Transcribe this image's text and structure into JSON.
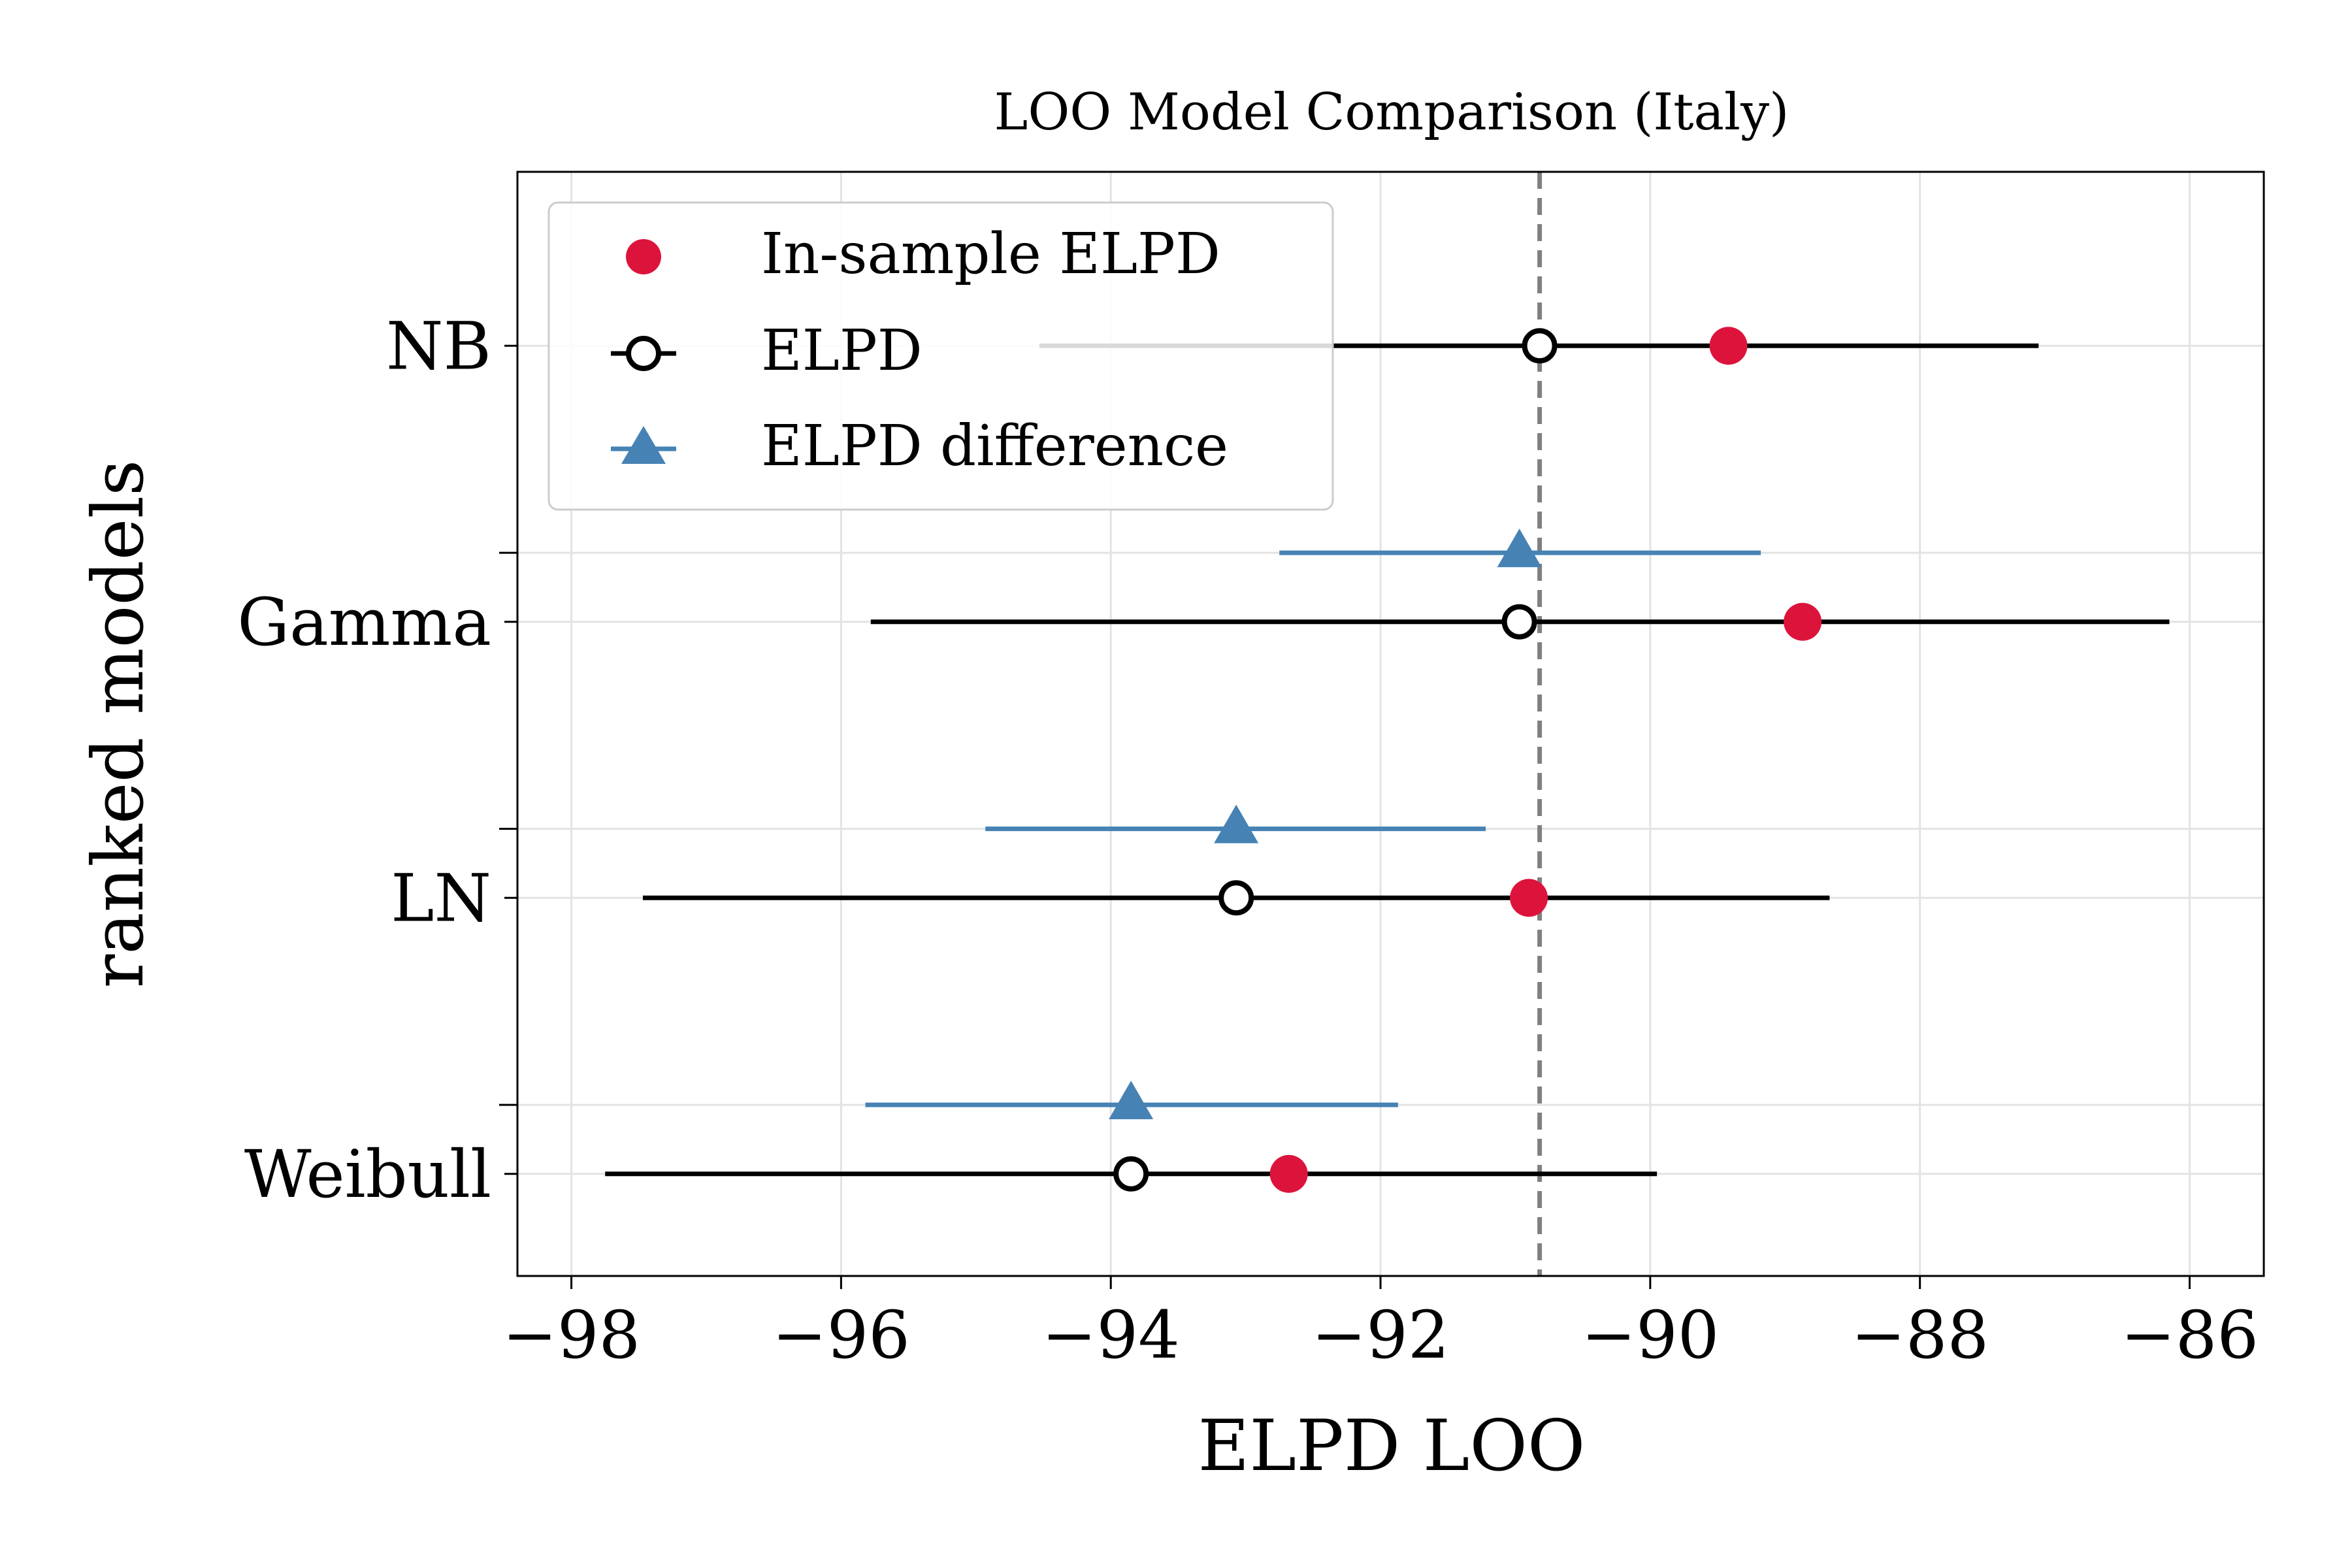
{
  "chart_data": {
    "type": "scatter",
    "title": "LOO Model Comparison (Italy)",
    "xlabel": "ELPD LOO",
    "ylabel": "ranked models",
    "xlim": [
      -98.4,
      -85.45
    ],
    "x_ticks": [
      -98,
      -96,
      -94,
      -92,
      -90,
      -88,
      -86
    ],
    "x_tick_labels": [
      "−98",
      "−96",
      "−94",
      "−92",
      "−90",
      "−88",
      "−86"
    ],
    "models": [
      "NB",
      "Gamma",
      "LN",
      "Weibull"
    ],
    "grid": true,
    "legend_position": "upper-left",
    "reference_line": -90.82,
    "series": [
      {
        "name": "In-sample ELPD",
        "marker": "filled-circle",
        "color": "#dc143c",
        "points": [
          {
            "model": "NB",
            "x": -89.42
          },
          {
            "model": "Gamma",
            "x": -88.87
          },
          {
            "model": "LN",
            "x": -90.9
          },
          {
            "model": "Weibull",
            "x": -92.68
          }
        ]
      },
      {
        "name": "ELPD",
        "marker": "open-circle",
        "color": "#000000",
        "points": [
          {
            "model": "NB",
            "x": -90.82,
            "low": -94.53,
            "high": -87.12
          },
          {
            "model": "Gamma",
            "x": -90.97,
            "low": -95.78,
            "high": -86.15
          },
          {
            "model": "LN",
            "x": -93.07,
            "low": -97.47,
            "high": -88.67
          },
          {
            "model": "Weibull",
            "x": -93.85,
            "low": -97.75,
            "high": -89.95
          }
        ]
      },
      {
        "name": "ELPD difference",
        "marker": "triangle",
        "color": "#4682b4",
        "points": [
          {
            "model": "Gamma",
            "x": -90.97,
            "low": -92.75,
            "high": -89.18
          },
          {
            "model": "LN",
            "x": -93.07,
            "low": -94.93,
            "high": -91.22
          },
          {
            "model": "Weibull",
            "x": -93.85,
            "low": -95.82,
            "high": -91.87
          }
        ]
      }
    ]
  }
}
